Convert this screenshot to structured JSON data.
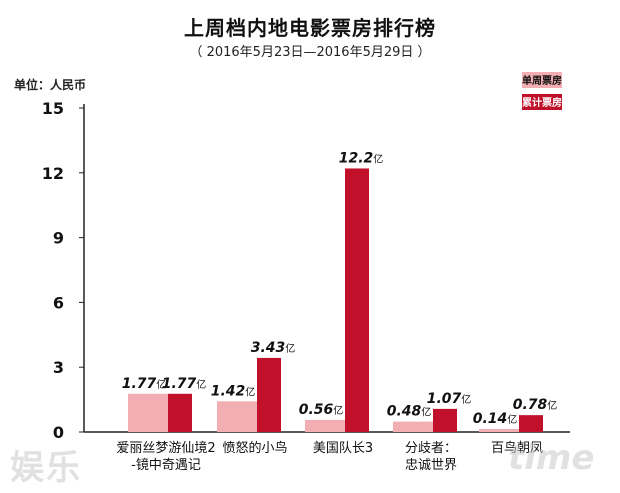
{
  "chart_data": {
    "type": "bar",
    "title": "上周档内地电影票房排行榜",
    "subtitle": "（ 2016年5月23日—2016年5月29日 ）",
    "ylabel": "单位：人民币",
    "ylim": [
      0,
      15
    ],
    "yticks": [
      "0",
      "3",
      "6",
      "9",
      "12",
      "15"
    ],
    "categories": [
      [
        "爱丽丝梦游仙境2",
        "-镜中奇遇记"
      ],
      [
        "愤怒的小鸟"
      ],
      [
        "美国队长3"
      ],
      [
        "分歧者：",
        "忠诚世界"
      ],
      [
        "百鸟朝凤"
      ]
    ],
    "value_unit": "亿",
    "series": [
      {
        "name": "单周票房",
        "color": "#f2aeb3",
        "values": [
          1.77,
          1.42,
          0.56,
          0.48,
          0.14
        ],
        "labels": [
          "1.77",
          "1.42",
          "0.56",
          "0.48",
          "0.14"
        ]
      },
      {
        "name": "累计票房",
        "color": "#c0102a",
        "values": [
          1.77,
          3.43,
          12.2,
          1.07,
          0.78
        ],
        "labels": [
          "1.77",
          "3.43",
          "12.2",
          "1.07",
          "0.78"
        ]
      }
    ],
    "grid": false,
    "legend_position": "top-right"
  },
  "watermark": {
    "left": "娱乐",
    "right": "time"
  }
}
